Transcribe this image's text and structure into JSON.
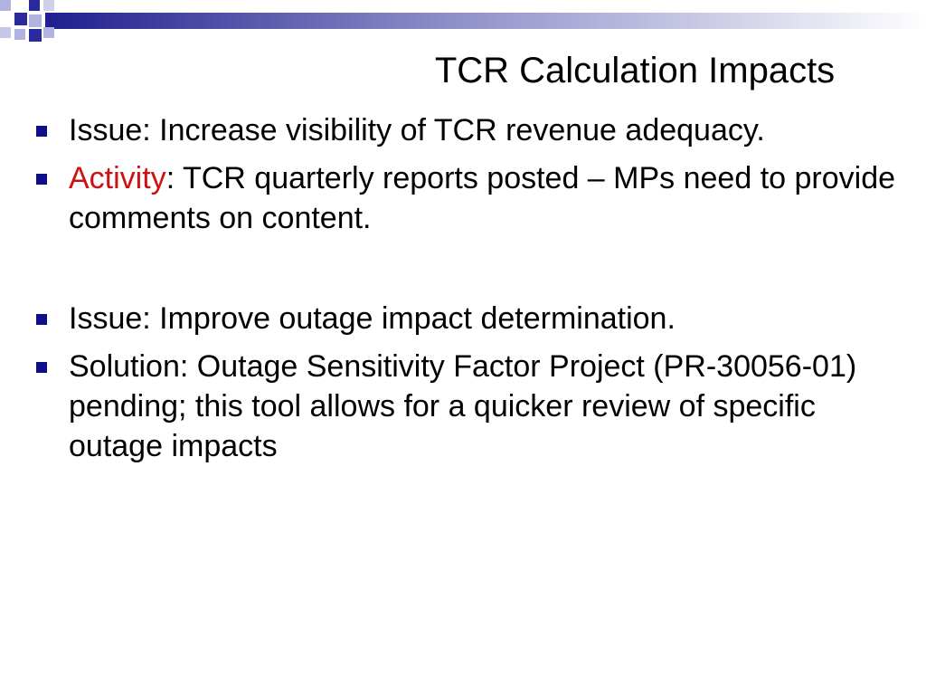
{
  "slide": {
    "title": "TCR Calculation Impacts",
    "colors": {
      "bullet": "#0f0f8c",
      "accent": "#cc1111",
      "deco_dark": "#1f1f8f",
      "deco_light": "#b3b3e0"
    },
    "bullets": [
      {
        "text": "Issue:  Increase visibility of TCR revenue adequacy."
      },
      {
        "lead": "Activity",
        "text": ":  TCR quarterly reports posted – MPs need to provide comments on content."
      },
      {
        "text": "Issue: Improve outage impact determination."
      },
      {
        "text": "Solution:  Outage Sensitivity Factor Project (PR-30056-01) pending; this tool allows for a quicker review of specific outage impacts"
      }
    ]
  }
}
